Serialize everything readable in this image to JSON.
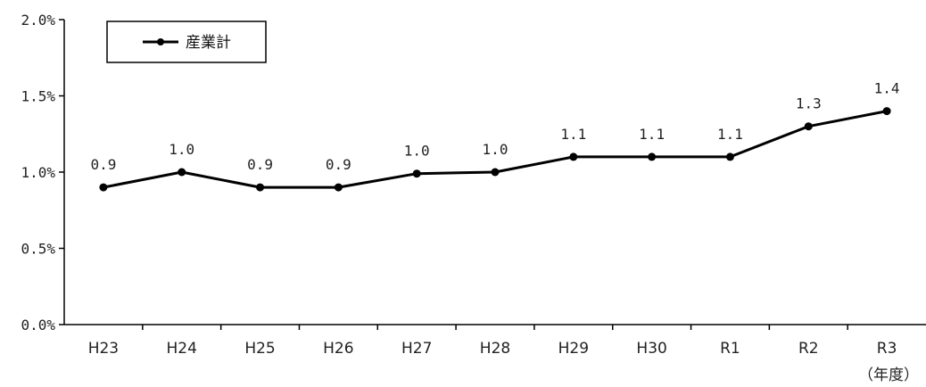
{
  "chart_data": {
    "type": "line",
    "categories": [
      "H23",
      "H24",
      "H25",
      "H26",
      "H27",
      "H28",
      "H29",
      "H30",
      "R1",
      "R2",
      "R3"
    ],
    "series": [
      {
        "name": "産業計",
        "values": [
          0.9,
          1.0,
          0.9,
          0.9,
          0.99,
          1.0,
          1.1,
          1.1,
          1.1,
          1.3,
          1.4
        ],
        "labels": [
          "0.9",
          "1.0",
          "0.9",
          "0.9",
          "1.0",
          "1.0",
          "1.1",
          "1.1",
          "1.1",
          "1.3",
          "1.4"
        ]
      }
    ],
    "y_ticks": [
      "0.0%",
      "0.5%",
      "1.0%",
      "1.5%",
      "2.0%"
    ],
    "ylim": [
      0,
      2.0
    ],
    "x_unit_label": "（年度）",
    "grid": false,
    "legend_position": "top-left"
  }
}
